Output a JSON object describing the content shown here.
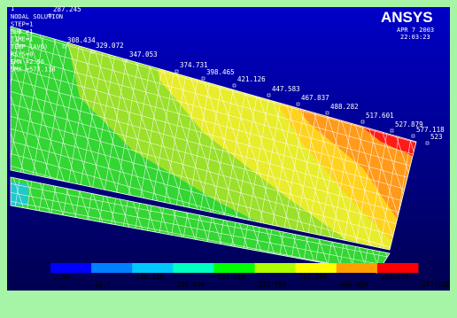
{
  "viewport_number": "1",
  "info": [
    "NODAL SOLUTION",
    "STEP=1",
    "SUB =1",
    "TIME=1",
    "TEMP     (AVG)",
    "RSYS=0",
    "SMN =2.56",
    "SMX =577.118"
  ],
  "logo": "ANSYS",
  "date": "APR  7 2003",
  "time": "22:03:23",
  "node_labels": [
    "287.245",
    "308.434",
    "329.072",
    "347.053",
    "374.731",
    "398.465",
    "421.126",
    "447.583",
    "467.837",
    "488.282",
    "517.601",
    "527.879",
    "577.118",
    "523"
  ],
  "legend": {
    "labels": [
      "2.56",
      "66.4",
      "130.239",
      "194.079",
      "257.919",
      "321.759",
      "385.599",
      "449.439",
      "513.278",
      "577.118"
    ]
  }
}
